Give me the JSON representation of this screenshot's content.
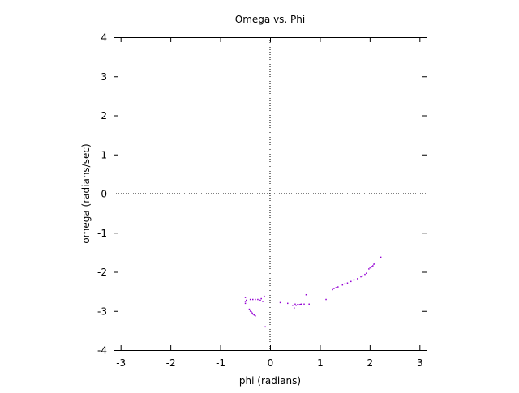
{
  "chart_data": {
    "type": "scatter",
    "title": "Omega vs. Phi",
    "xlabel": "phi (radians)",
    "ylabel": "omega (radians/sec)",
    "xlim": [
      -3.1416,
      3.1416
    ],
    "ylim": [
      -4,
      4
    ],
    "xticks": [
      -3,
      -2,
      -1,
      0,
      1,
      2,
      3
    ],
    "yticks": [
      -4,
      -3,
      -2,
      -1,
      0,
      1,
      2,
      3,
      4
    ],
    "zero_axes": true,
    "grid": false,
    "point_color": "#9400d3",
    "points": [
      [
        -0.5,
        -2.65
      ],
      [
        -0.5,
        -2.75
      ],
      [
        -0.5,
        -2.8
      ],
      [
        -0.48,
        -2.72
      ],
      [
        -0.42,
        -2.95
      ],
      [
        -0.4,
        -3.0
      ],
      [
        -0.38,
        -3.02
      ],
      [
        -0.36,
        -3.05
      ],
      [
        -0.34,
        -3.08
      ],
      [
        -0.32,
        -3.1
      ],
      [
        -0.3,
        -3.12
      ],
      [
        -0.4,
        -2.7
      ],
      [
        -0.35,
        -2.7
      ],
      [
        -0.3,
        -2.7
      ],
      [
        -0.25,
        -2.7
      ],
      [
        -0.2,
        -2.72
      ],
      [
        -0.18,
        -2.68
      ],
      [
        -0.15,
        -2.75
      ],
      [
        -0.12,
        -2.62
      ],
      [
        -0.1,
        -3.4
      ],
      [
        0.2,
        -2.78
      ],
      [
        0.35,
        -2.8
      ],
      [
        0.45,
        -2.85
      ],
      [
        0.48,
        -2.92
      ],
      [
        0.5,
        -2.82
      ],
      [
        0.52,
        -2.85
      ],
      [
        0.55,
        -2.83
      ],
      [
        0.58,
        -2.84
      ],
      [
        0.6,
        -2.83
      ],
      [
        0.62,
        -2.82
      ],
      [
        0.68,
        -2.82
      ],
      [
        0.72,
        -2.58
      ],
      [
        0.78,
        -2.82
      ],
      [
        1.12,
        -2.7
      ],
      [
        1.25,
        -2.45
      ],
      [
        1.28,
        -2.42
      ],
      [
        1.32,
        -2.4
      ],
      [
        1.36,
        -2.38
      ],
      [
        1.45,
        -2.33
      ],
      [
        1.5,
        -2.3
      ],
      [
        1.55,
        -2.28
      ],
      [
        1.62,
        -2.24
      ],
      [
        1.68,
        -2.2
      ],
      [
        1.75,
        -2.17
      ],
      [
        1.82,
        -2.12
      ],
      [
        1.85,
        -2.1
      ],
      [
        1.9,
        -2.06
      ],
      [
        1.93,
        -2.03
      ],
      [
        1.98,
        -1.92
      ],
      [
        2.0,
        -1.88
      ],
      [
        2.02,
        -1.9
      ],
      [
        2.04,
        -1.86
      ],
      [
        2.06,
        -1.84
      ],
      [
        2.08,
        -1.8
      ],
      [
        2.1,
        -1.78
      ],
      [
        2.22,
        -1.62
      ]
    ]
  }
}
